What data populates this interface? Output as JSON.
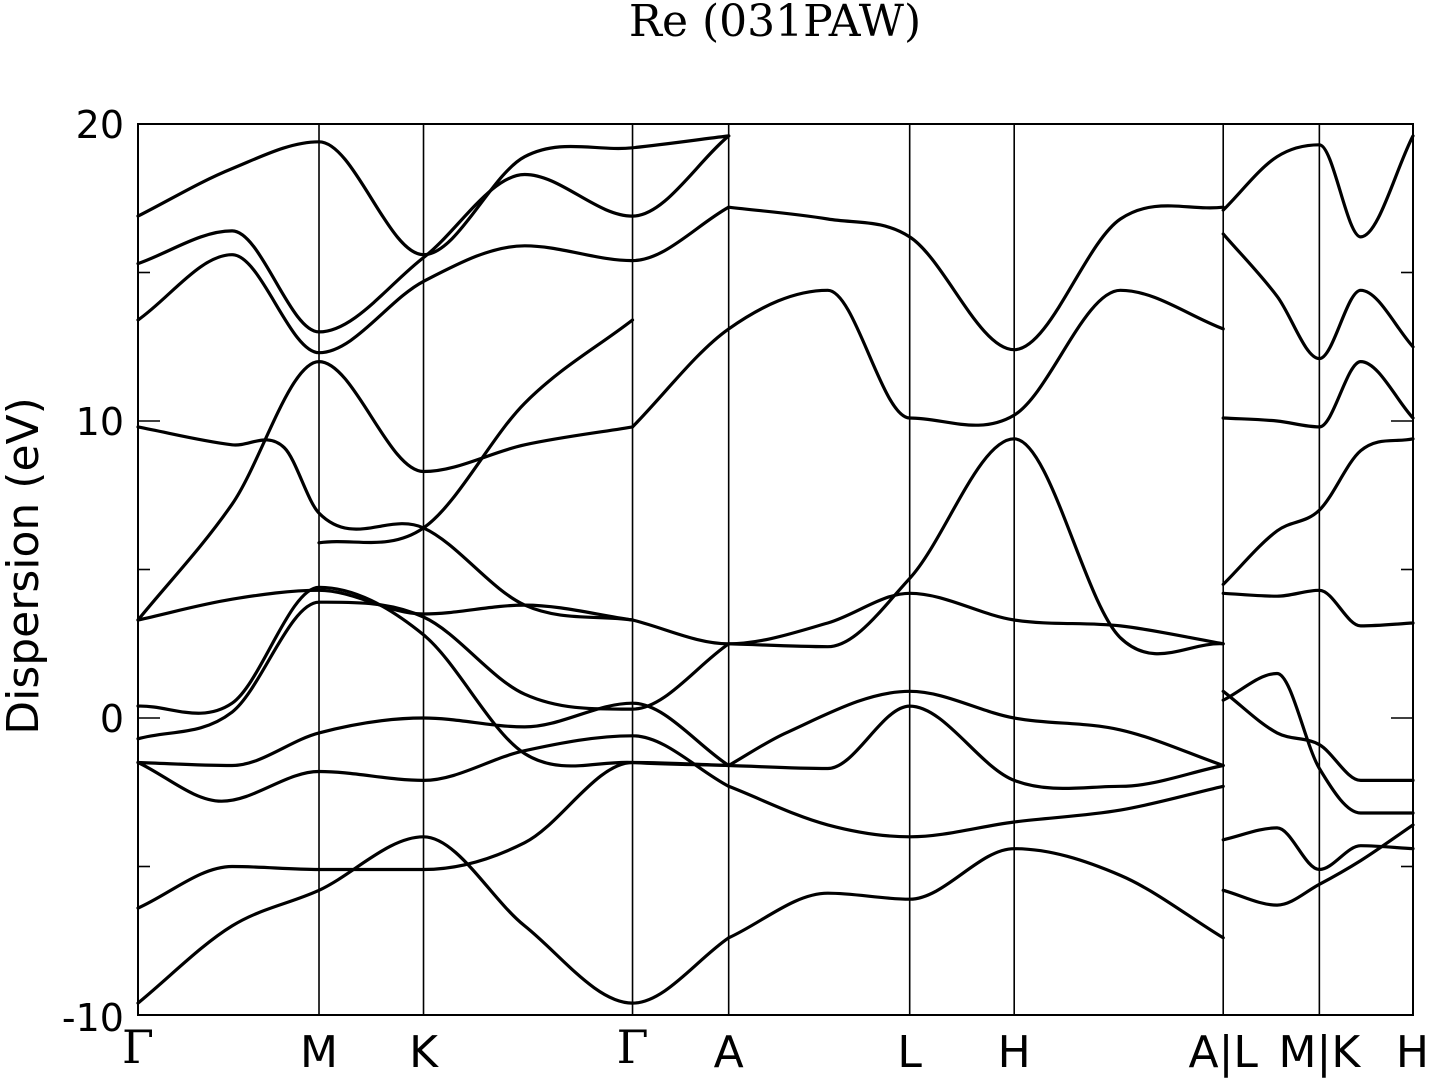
{
  "chart_data": {
    "type": "line",
    "title": "Re (031PAW)",
    "ylabel": "Dispersion (eV)",
    "ylim": [
      -10,
      20
    ],
    "yticks": [
      "-10",
      "0",
      "10",
      "20"
    ],
    "grid": false,
    "xlim": [
      0,
      12.2
    ],
    "kpoints": [
      {
        "label": "Γ",
        "x": 0
      },
      {
        "label": "M",
        "x": 1.732
      },
      {
        "label": "K",
        "x": 2.732
      },
      {
        "label": "Γ",
        "x": 4.732
      },
      {
        "label": "A",
        "x": 5.652
      },
      {
        "label": "L",
        "x": 7.384
      },
      {
        "label": "H",
        "x": 8.384
      },
      {
        "label": "A|L",
        "x": 10.384
      },
      {
        "label": "M|K",
        "x": 11.304
      },
      {
        "label": "H",
        "x": 12.2
      }
    ],
    "bands": [
      {
        "x": [
          0,
          0.9,
          1.732,
          2.732,
          3.7,
          4.732,
          5.652
        ],
        "y": [
          -9.6,
          -7,
          -5.8,
          -4,
          -7,
          -9.6,
          -7.4
        ]
      },
      {
        "x": [
          5.652,
          6.6,
          7.384,
          8.384,
          9.4,
          10.384
        ],
        "y": [
          -7.4,
          -5.9,
          -6.1,
          -4.4,
          -5.3,
          -7.4
        ]
      },
      {
        "x": [
          0,
          0.9,
          1.732,
          2.732,
          3.7,
          4.732,
          5.652
        ],
        "y": [
          -6.4,
          -5,
          -5.1,
          -5.1,
          -4.2,
          -1.5,
          -1.6
        ]
      },
      {
        "x": [
          0,
          0.8,
          1.732,
          2.732,
          3.7,
          4.732,
          5.652
        ],
        "y": [
          -1.5,
          -2.8,
          -1.8,
          -2.1,
          -1.1,
          -0.6,
          -2.3
        ]
      },
      {
        "x": [
          5.652,
          6.6,
          7.384,
          8.384,
          9.4,
          10.384
        ],
        "y": [
          -2.3,
          -3.6,
          -4,
          -3.5,
          -3.1,
          -2.3
        ]
      },
      {
        "x": [
          0,
          0.9,
          1.732,
          2.732,
          3.7,
          4.732,
          5.652
        ],
        "y": [
          -1.5,
          -1.6,
          -0.5,
          0,
          -0.3,
          0.5,
          -1.6
        ]
      },
      {
        "x": [
          5.652,
          6.6,
          7.384,
          8.384,
          9.4,
          10.384
        ],
        "y": [
          -1.6,
          -1.7,
          0.4,
          -2.1,
          -2.3,
          -1.6
        ]
      },
      {
        "x": [
          5.652,
          6.2,
          7.384,
          8.384,
          9.4,
          10.384
        ],
        "y": [
          -1.6,
          -0.5,
          0.9,
          0,
          -0.4,
          -1.6
        ]
      },
      {
        "x": [
          0,
          0.9,
          1.732,
          2.732,
          3.7,
          4.732,
          5.652
        ],
        "y": [
          -0.7,
          0.2,
          3.9,
          3.4,
          0.8,
          0.3,
          2.5
        ]
      },
      {
        "x": [
          0,
          0.9,
          1.732,
          2.732,
          3.7,
          4.732,
          5.652
        ],
        "y": [
          0.4,
          0.5,
          4.4,
          2.8,
          -1.2,
          -1.5,
          -1.6
        ]
      },
      {
        "x": [
          0,
          0.9,
          1.732,
          2.732,
          3.7,
          4.732
        ],
        "y": [
          3.3,
          4,
          4.3,
          3.5,
          3.8,
          3.3
        ]
      },
      {
        "x": [
          4.732,
          5.652,
          6.6,
          7.384,
          8.384,
          9.4,
          10.384
        ],
        "y": [
          3.3,
          2.5,
          3.2,
          4.2,
          3.3,
          3.1,
          2.5
        ]
      },
      {
        "x": [
          5.652,
          6.6,
          7.384,
          8.384,
          9.4,
          10.384
        ],
        "y": [
          2.5,
          2.4,
          4.7,
          9.4,
          2.7,
          2.5
        ]
      },
      {
        "x": [
          0,
          0.9,
          1.732,
          2.732,
          3.7,
          4.732
        ],
        "y": [
          3.3,
          7.2,
          12,
          8.3,
          9.2,
          9.8
        ]
      },
      {
        "x": [
          0,
          0.9,
          1.4,
          1.732,
          2.732,
          3.7,
          4.732
        ],
        "y": [
          9.8,
          9.2,
          9.1,
          6.9,
          6.4,
          3.8,
          3.3
        ]
      },
      {
        "x": [
          1.732,
          2.732,
          3.7,
          4.732
        ],
        "y": [
          5.9,
          6.4,
          10.6,
          13.4
        ]
      },
      {
        "x": [
          4.732,
          5.652,
          6.6,
          7.384,
          8.384,
          9.4,
          10.384
        ],
        "y": [
          9.8,
          13.1,
          14.4,
          10.1,
          10.2,
          14.4,
          13.1
        ]
      },
      {
        "x": [
          0,
          0.9,
          1.732,
          2.732,
          3.7,
          4.732,
          5.652
        ],
        "y": [
          13.4,
          15.6,
          12.3,
          14.7,
          15.9,
          15.4,
          17.2
        ]
      },
      {
        "x": [
          5.652,
          6.6,
          7.384,
          8.384,
          9.4,
          10.384
        ],
        "y": [
          17.2,
          16.8,
          16.2,
          12.4,
          16.8,
          17.2
        ]
      },
      {
        "x": [
          0,
          0.9,
          1.732,
          2.732,
          3.7,
          4.732,
          5.652
        ],
        "y": [
          15.3,
          16.4,
          13,
          15.5,
          18.3,
          16.9,
          19.6
        ]
      },
      {
        "x": [
          0,
          0.9,
          1.732,
          2.732,
          3.7,
          4.732,
          5.652
        ],
        "y": [
          16.9,
          18.5,
          19.4,
          15.6,
          18.9,
          19.2,
          19.6
        ]
      },
      {
        "x": [
          10.384,
          10.9,
          11.304,
          11.7,
          12.2
        ],
        "y": [
          -4.1,
          -3.7,
          -5.1,
          -4.3,
          -4.4
        ]
      },
      {
        "x": [
          10.384,
          10.9,
          11.304,
          11.7,
          12.2
        ],
        "y": [
          -5.8,
          -6.3,
          -5.6,
          -4.8,
          -3.6
        ]
      },
      {
        "x": [
          10.384,
          10.9,
          11.304,
          11.7,
          12.2
        ],
        "y": [
          0.9,
          -0.5,
          -0.9,
          -2.1,
          -2.1
        ]
      },
      {
        "x": [
          10.384,
          10.9,
          11.304,
          11.7,
          12.2
        ],
        "y": [
          0.6,
          1.5,
          -1.7,
          -3.2,
          -3.2
        ]
      },
      {
        "x": [
          10.384,
          10.9,
          11.304,
          11.7,
          12.2
        ],
        "y": [
          4.2,
          4.1,
          4.3,
          3.1,
          3.2
        ]
      },
      {
        "x": [
          10.384,
          10.9,
          11.304,
          11.7,
          12.2
        ],
        "y": [
          4.5,
          6.3,
          7.0,
          9.0,
          9.4
        ]
      },
      {
        "x": [
          10.384,
          10.9,
          11.304,
          11.7,
          12.2
        ],
        "y": [
          10.1,
          10.0,
          9.8,
          12.0,
          10.1
        ]
      },
      {
        "x": [
          10.384,
          10.9,
          11.304,
          11.7,
          12.2
        ],
        "y": [
          16.3,
          14.2,
          12.1,
          14.4,
          12.5
        ]
      },
      {
        "x": [
          10.384,
          10.9,
          11.304,
          11.7,
          12.2
        ],
        "y": [
          17.1,
          18.9,
          19.3,
          16.2,
          19.6
        ]
      }
    ]
  }
}
